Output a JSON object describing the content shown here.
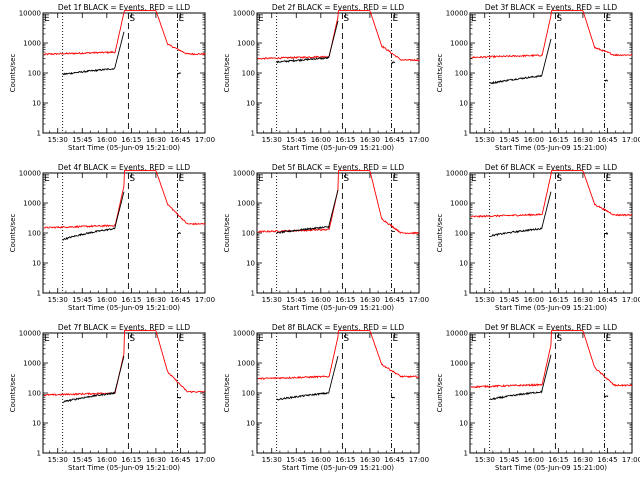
{
  "chart_data": {
    "type": "line",
    "y_scale": "log",
    "ylim": [
      1,
      10000
    ],
    "ylabel": "Counts/sec",
    "xlabel": "Start Time (05-Jun-09 15:21:00)",
    "x_ticks": [
      "15:30",
      "15:45",
      "16:00",
      "16:15",
      "16:30",
      "16:45",
      "17:00"
    ],
    "y_ticks": [
      "1",
      "10",
      "100",
      "1000",
      "10000"
    ],
    "x_range_hours": [
      15.35,
      17.0
    ],
    "line_markers": [
      {
        "label": "E",
        "time_hour": 15.35,
        "style": "none"
      },
      {
        "label": "",
        "time_hour": 15.55,
        "style": "dotted"
      },
      {
        "label": "S",
        "time_hour": 16.22,
        "style": "dashed"
      },
      {
        "label": "E",
        "time_hour": 16.72,
        "style": "dashdot"
      }
    ],
    "colors": {
      "events": "#000000",
      "lld": "#ff0000"
    },
    "panels": [
      {
        "title": "Det 1f BLACK = Events, RED = LLD",
        "lld_base": 420,
        "ev_base": 90,
        "ev_pre": 140,
        "lld_peak_end": 900,
        "lld_end": 430
      },
      {
        "title": "Det 2f BLACK = Events, RED = LLD",
        "lld_base": 300,
        "ev_base": 230,
        "ev_pre": 320,
        "lld_peak_end": 800,
        "lld_end": 270
      },
      {
        "title": "Det 3f BLACK = Events, RED = LLD",
        "lld_base": 330,
        "ev_base": 45,
        "ev_pre": 80,
        "lld_peak_end": 700,
        "lld_end": 400
      },
      {
        "title": "Det 4f BLACK = Events, RED = LLD",
        "lld_base": 150,
        "ev_base": 60,
        "ev_pre": 140,
        "lld_peak_end": 900,
        "lld_end": 200
      },
      {
        "title": "Det 5f BLACK = Events, RED = LLD",
        "lld_base": 110,
        "ev_base": 100,
        "ev_pre": 160,
        "lld_peak_end": 300,
        "lld_end": 100
      },
      {
        "title": "Det 6f BLACK = Events, RED = LLD",
        "lld_base": 350,
        "ev_base": 80,
        "ev_pre": 140,
        "lld_peak_end": 900,
        "lld_end": 400
      },
      {
        "title": "Det 7f BLACK = Events, RED = LLD",
        "lld_base": 85,
        "ev_base": 50,
        "ev_pre": 100,
        "lld_peak_end": 500,
        "lld_end": 110
      },
      {
        "title": "Det 8f BLACK = Events, RED = LLD",
        "lld_base": 300,
        "ev_base": 60,
        "ev_pre": 100,
        "lld_peak_end": 900,
        "lld_end": 350
      },
      {
        "title": "Det 9f BLACK = Events, RED = LLD",
        "lld_base": 160,
        "ev_base": 60,
        "ev_pre": 110,
        "lld_peak_end": 700,
        "lld_end": 180
      }
    ]
  }
}
